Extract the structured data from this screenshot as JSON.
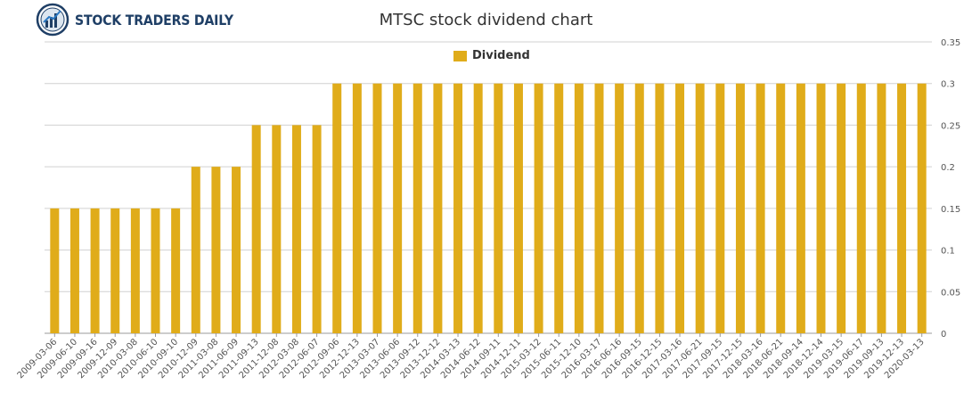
{
  "brand": {
    "name": "STOCK TRADERS DAILY",
    "logo_icon": "globe-chart-icon"
  },
  "colors": {
    "bar": "#e0ac1a",
    "grid": "#d0d0d0",
    "axis_text": "#555555",
    "logo_blue": "#1f3f66"
  },
  "chart_data": {
    "type": "bar",
    "title": "MTSC stock dividend chart",
    "xlabel": "",
    "ylabel": "",
    "ylim": [
      0,
      0.35
    ],
    "yticks": [
      "0",
      "0.05",
      "0.1",
      "0.15",
      "0.2",
      "0.25",
      "0.3",
      "0.35"
    ],
    "grid": true,
    "legend_position": "top-center",
    "categories": [
      "2009-03-06",
      "2009-06-10",
      "2009-09-16",
      "2009-12-09",
      "2010-03-08",
      "2010-06-10",
      "2010-09-10",
      "2010-12-09",
      "2011-03-08",
      "2011-06-09",
      "2011-09-13",
      "2011-12-08",
      "2012-03-08",
      "2012-06-07",
      "2012-09-06",
      "2012-12-13",
      "2013-03-07",
      "2013-06-06",
      "2013-09-12",
      "2013-12-12",
      "2014-03-13",
      "2014-06-12",
      "2014-09-11",
      "2014-12-11",
      "2015-03-12",
      "2015-06-11",
      "2015-12-10",
      "2016-03-17",
      "2016-06-16",
      "2016-09-15",
      "2016-12-15",
      "2017-03-16",
      "2017-06-21",
      "2017-09-15",
      "2017-12-15",
      "2018-03-16",
      "2018-06-21",
      "2018-09-14",
      "2018-12-14",
      "2019-03-15",
      "2019-06-17",
      "2019-09-13",
      "2019-12-13",
      "2020-03-13"
    ],
    "series": [
      {
        "name": "Dividend",
        "values": [
          0.15,
          0.15,
          0.15,
          0.15,
          0.15,
          0.15,
          0.15,
          0.2,
          0.2,
          0.2,
          0.25,
          0.25,
          0.25,
          0.25,
          0.3,
          0.3,
          0.3,
          0.3,
          0.3,
          0.3,
          0.3,
          0.3,
          0.3,
          0.3,
          0.3,
          0.3,
          0.3,
          0.3,
          0.3,
          0.3,
          0.3,
          0.3,
          0.3,
          0.3,
          0.3,
          0.3,
          0.3,
          0.3,
          0.3,
          0.3,
          0.3,
          0.3,
          0.3,
          0.3
        ]
      }
    ]
  }
}
